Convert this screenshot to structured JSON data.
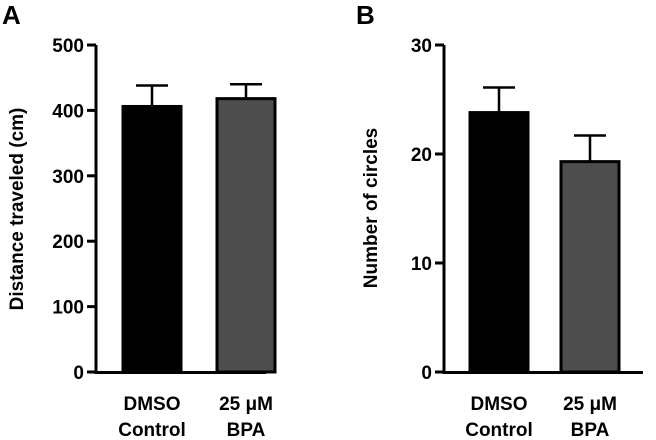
{
  "chart_data": [
    {
      "type": "bar",
      "panel_label": "A",
      "ylabel": "Distance traveled (cm)",
      "ylim": [
        0,
        500
      ],
      "yticks": [
        "0",
        "100",
        "200",
        "300",
        "400",
        "500"
      ],
      "categories": [
        {
          "line1": "DMSO",
          "line2": "Control"
        },
        {
          "line1": "25 μM",
          "line2": "BPA"
        }
      ],
      "values": [
        406,
        418
      ],
      "errors": [
        32,
        22
      ],
      "colors": [
        "#000000",
        "#4d4d4d"
      ]
    },
    {
      "type": "bar",
      "panel_label": "B",
      "ylabel": "Number of circles",
      "ylim": [
        0,
        30
      ],
      "yticks": [
        "0",
        "10",
        "20",
        "30"
      ],
      "categories": [
        {
          "line1": "DMSO",
          "line2": "Control"
        },
        {
          "line1": "25 μM",
          "line2": "BPA"
        }
      ],
      "values": [
        23.8,
        19.3
      ],
      "errors": [
        2.3,
        2.4
      ],
      "colors": [
        "#000000",
        "#4d4d4d"
      ]
    }
  ]
}
